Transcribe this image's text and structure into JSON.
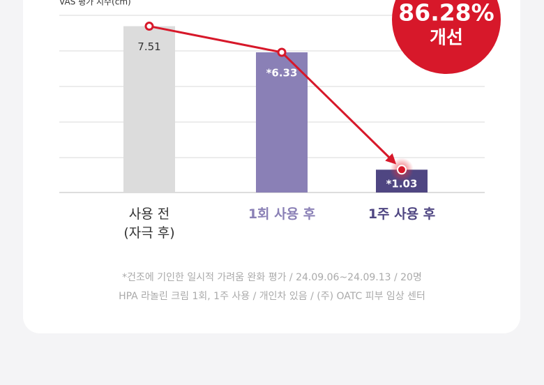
{
  "chart_data": {
    "type": "bar",
    "y_label": "VAS 평가 지수(cm)",
    "badge": {
      "value": "86.28%",
      "label": "개선"
    },
    "categories": [
      "사용 전\n(자극 후)",
      "1회 사용 후",
      "1주 사용 후"
    ],
    "values": [
      7.51,
      6.33,
      1.03
    ],
    "value_labels": [
      "7.51",
      "*6.33",
      "*1.03"
    ],
    "colors": [
      "#dcdcdc",
      "#8a80b6",
      "#4f4682"
    ],
    "line_color": "#d7182a",
    "ylim": [
      0,
      8
    ],
    "footnotes": [
      "*건조에 기인한 일시적 가려움 완화 평가 / 24.09.06~24.09.13 / 20명",
      "HPA 라놀린 크림 1회, 1주 사용  / 개인차 있음 / (주) OATC 피부 임상 센터"
    ]
  }
}
